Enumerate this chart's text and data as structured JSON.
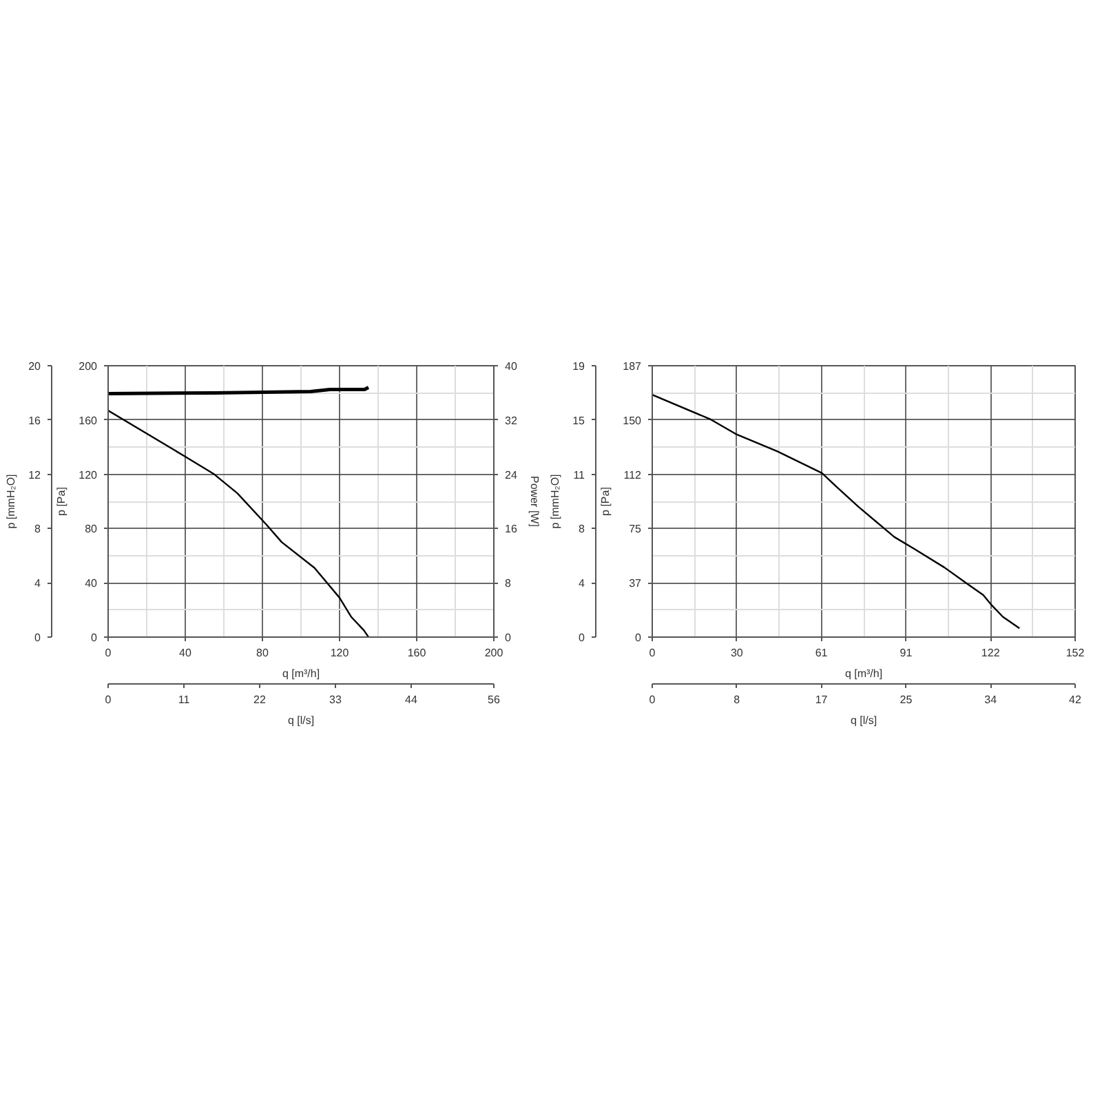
{
  "chart_data": [
    {
      "type": "line",
      "xlabel": "q [m³/h]",
      "ylabel": "p [Pa]",
      "y2label": "Power [W]",
      "y3label": "p [mmH₂O]",
      "x2label": "q [l/s]",
      "xlim": [
        0,
        200
      ],
      "xticks": [
        0,
        40,
        80,
        120,
        160,
        200
      ],
      "ylim": [
        0,
        200
      ],
      "yticks": [
        0,
        40,
        80,
        120,
        160,
        200
      ],
      "y2lim": [
        0,
        40
      ],
      "y2ticks": [
        0,
        8,
        16,
        24,
        32,
        40
      ],
      "y3lim": [
        0,
        20
      ],
      "y3ticks": [
        0,
        4,
        8,
        12,
        16,
        20
      ],
      "x2lim": [
        0,
        56
      ],
      "x2ticks": [
        0,
        11,
        22,
        33,
        44,
        56
      ],
      "grid": true,
      "series": [
        {
          "color": "#000000",
          "x": [
            0,
            40,
            55,
            67,
            82,
            90,
            107,
            120,
            126,
            132.6,
            135
          ],
          "values": [
            167,
            133,
            120,
            106,
            83,
            70,
            51,
            29,
            15,
            5,
            0
          ]
        },
        {
          "color": "#000000",
          "axis": "y2",
          "x": [
            0,
            55,
            105,
            115,
            133,
            135
          ],
          "values": [
            35.9,
            36.0,
            36.2,
            36.5,
            36.5,
            36.8
          ]
        }
      ]
    },
    {
      "type": "line",
      "xlabel": "q [m³/h]",
      "ylabel": "p [Pa]",
      "y3label": "p [mmH₂O]",
      "x2label": "q [l/s]",
      "xlim": [
        0,
        152
      ],
      "xticks": [
        0,
        {
          "value": 30.4,
          "label": "30"
        },
        {
          "value": 60.8,
          "label": "61"
        },
        {
          "value": 91.2,
          "label": "91"
        },
        {
          "value": 121.6,
          "label": "122"
        },
        152
      ],
      "ylim": [
        0,
        187
      ],
      "yticks": [
        0,
        {
          "value": 37.4,
          "label": "37"
        },
        {
          "value": 74.8,
          "label": "75"
        },
        {
          "value": 112.2,
          "label": "112"
        },
        {
          "value": 149.6,
          "label": "150"
        },
        187
      ],
      "y3lim": [
        0,
        19
      ],
      "y3ticks": [
        0,
        {
          "value": 3.8,
          "label": "4"
        },
        {
          "value": 7.6,
          "label": "8"
        },
        {
          "value": 11.4,
          "label": "11"
        },
        {
          "value": 15.2,
          "label": "15"
        },
        19
      ],
      "x2lim": [
        0,
        42
      ],
      "x2ticks": [
        0,
        {
          "value": 8.4,
          "label": "8"
        },
        {
          "value": 16.8,
          "label": "17"
        },
        {
          "value": 25.2,
          "label": "25"
        },
        {
          "value": 33.6,
          "label": "34"
        },
        42
      ],
      "grid": true,
      "series": [
        {
          "color": "#000000",
          "x": [
            0,
            21,
            30,
            45,
            61,
            66,
            74,
            87,
            94,
            105,
            113,
            119,
            122,
            126,
            132
          ],
          "values": [
            167,
            150,
            140,
            128,
            113,
            104,
            90,
            69,
            61,
            48,
            37,
            29,
            22,
            14,
            6
          ]
        }
      ]
    }
  ]
}
